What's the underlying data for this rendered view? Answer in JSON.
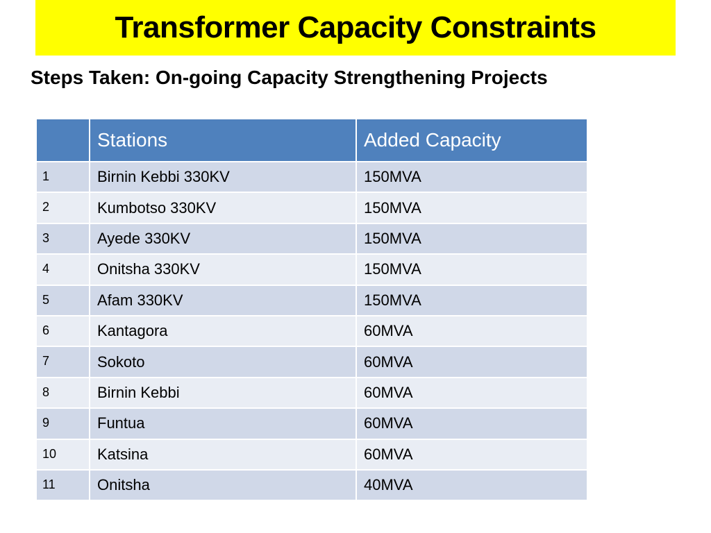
{
  "slide": {
    "title": "Transformer Capacity Constraints",
    "subtitle": "Steps Taken: On-going Capacity Strengthening Projects"
  },
  "colors": {
    "title_bar": "#ffff00",
    "table_header": "#4f81bd",
    "row_band_dark": "#d0d8e8",
    "row_band_light": "#e9edf4"
  },
  "table": {
    "headers": {
      "num": "",
      "stations": "Stations",
      "added_capacity": "Added Capacity"
    },
    "rows": [
      {
        "num": "1",
        "station": "Birnin Kebbi 330KV",
        "capacity": "150MVA"
      },
      {
        "num": "2",
        "station": "Kumbotso 330KV",
        "capacity": "150MVA"
      },
      {
        "num": "3",
        "station": "Ayede 330KV",
        "capacity": "150MVA"
      },
      {
        "num": "4",
        "station": "Onitsha 330KV",
        "capacity": "150MVA"
      },
      {
        "num": "5",
        "station": "Afam 330KV",
        "capacity": "150MVA"
      },
      {
        "num": "6",
        "station": "Kantagora",
        "capacity": "60MVA"
      },
      {
        "num": "7",
        "station": "Sokoto",
        "capacity": "60MVA"
      },
      {
        "num": "8",
        "station": "Birnin Kebbi",
        "capacity": "60MVA"
      },
      {
        "num": "9",
        "station": "Funtua",
        "capacity": "60MVA"
      },
      {
        "num": "10",
        "station": "Katsina",
        "capacity": "60MVA"
      },
      {
        "num": "11",
        "station": "Onitsha",
        "capacity": "40MVA"
      }
    ]
  }
}
